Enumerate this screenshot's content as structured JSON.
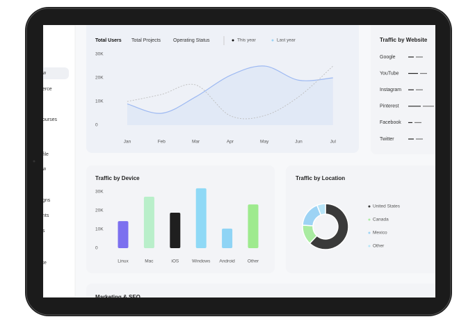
{
  "sidebar": {
    "items": [
      "w",
      "erce",
      "ourses",
      "file",
      "w",
      "gns",
      "nts",
      "s",
      "te"
    ]
  },
  "users_card": {
    "tabs": [
      "Total Users",
      "Total Projects",
      "Operating Status"
    ],
    "chart": {
      "type": "line",
      "categories": [
        "Jan",
        "Feb",
        "Mar",
        "Apr",
        "May",
        "Jun",
        "Jul"
      ],
      "series": [
        {
          "name": "This year",
          "color": "#9db9f2",
          "values": [
            9000,
            5000,
            12000,
            21000,
            25000,
            19000,
            20000
          ]
        },
        {
          "name": "Last year",
          "color": "#bdbdbd",
          "values": [
            10000,
            13000,
            17000,
            4000,
            4000,
            12000,
            25000
          ]
        }
      ],
      "ylim": [
        0,
        30000
      ],
      "yticks": [
        {
          "value": 0,
          "label": "0"
        },
        {
          "value": 10000,
          "label": "10K"
        },
        {
          "value": 20000,
          "label": "20K"
        },
        {
          "value": 30000,
          "label": "30K"
        }
      ]
    }
  },
  "website_card": {
    "title": "Traffic by Website",
    "sites": [
      "Google",
      "YouTube",
      "Instagram",
      "Pinterest",
      "Facebook",
      "Twitter"
    ]
  },
  "device_card": {
    "title": "Traffic by Device",
    "chart": {
      "type": "bar",
      "categories": [
        "Linux",
        "Mac",
        "iOS",
        "Windows",
        "Android",
        "Other"
      ],
      "values": [
        14400,
        27400,
        18900,
        31900,
        10400,
        23300
      ],
      "colors": [
        "#7c70ef",
        "#b9efca",
        "#1f1f1f",
        "#8fd9f6",
        "#8fd4f5",
        "#9eea8e"
      ],
      "ylim": [
        0,
        30000
      ],
      "yticks": [
        {
          "value": 0,
          "label": "0"
        },
        {
          "value": 10000,
          "label": "10K"
        },
        {
          "value": 20000,
          "label": "20K"
        },
        {
          "value": 30000,
          "label": "30K"
        }
      ]
    }
  },
  "location_card": {
    "title": "Traffic by Location",
    "chart": {
      "type": "donut",
      "categories": [
        "United States",
        "Canada",
        "Mexico",
        "Other"
      ],
      "values": [
        62,
        14,
        18,
        6
      ],
      "colors": [
        "#3a3a3a",
        "#a9eba1",
        "#9dd3f4",
        "#b7e4f7"
      ]
    }
  },
  "marketing_card": {
    "title": "Marketing & SEO"
  }
}
